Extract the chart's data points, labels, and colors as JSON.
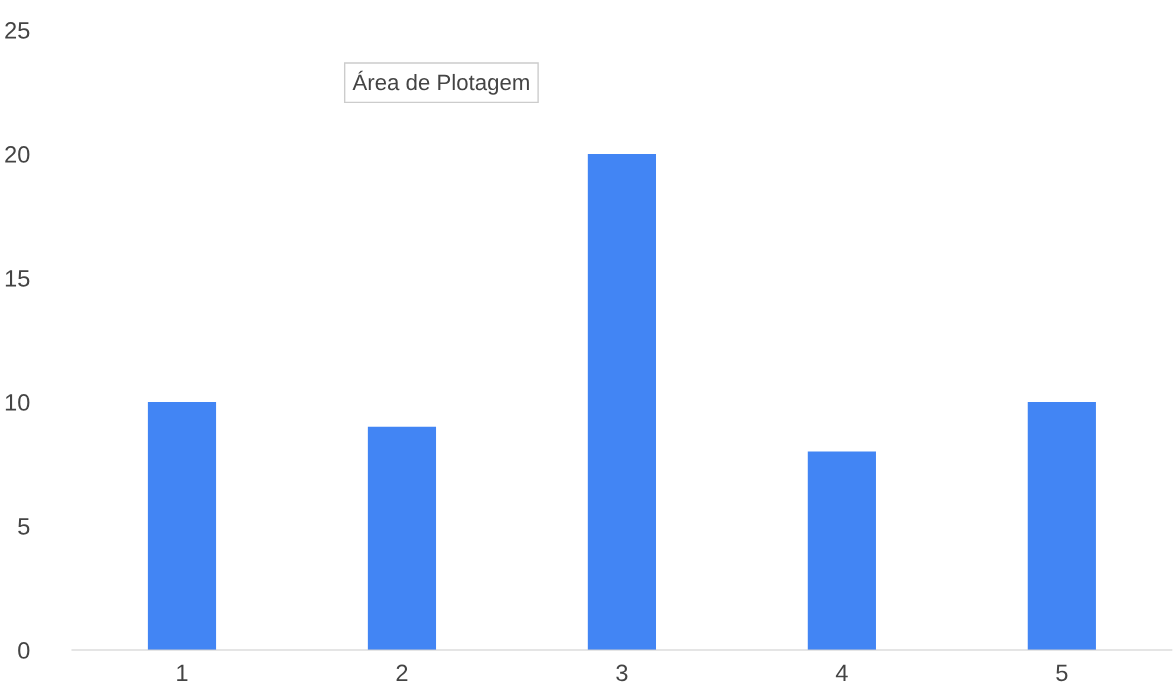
{
  "chart_data": {
    "type": "bar",
    "categories": [
      "1",
      "2",
      "3",
      "4",
      "5"
    ],
    "values": [
      10,
      9,
      20,
      8,
      10
    ],
    "color": "#4285f4",
    "ylim": [
      0,
      25
    ],
    "yticks": [
      0,
      5,
      10,
      15,
      20,
      25
    ],
    "grid": false,
    "legend": false,
    "annotations": [
      "Área de Plotagem"
    ]
  }
}
